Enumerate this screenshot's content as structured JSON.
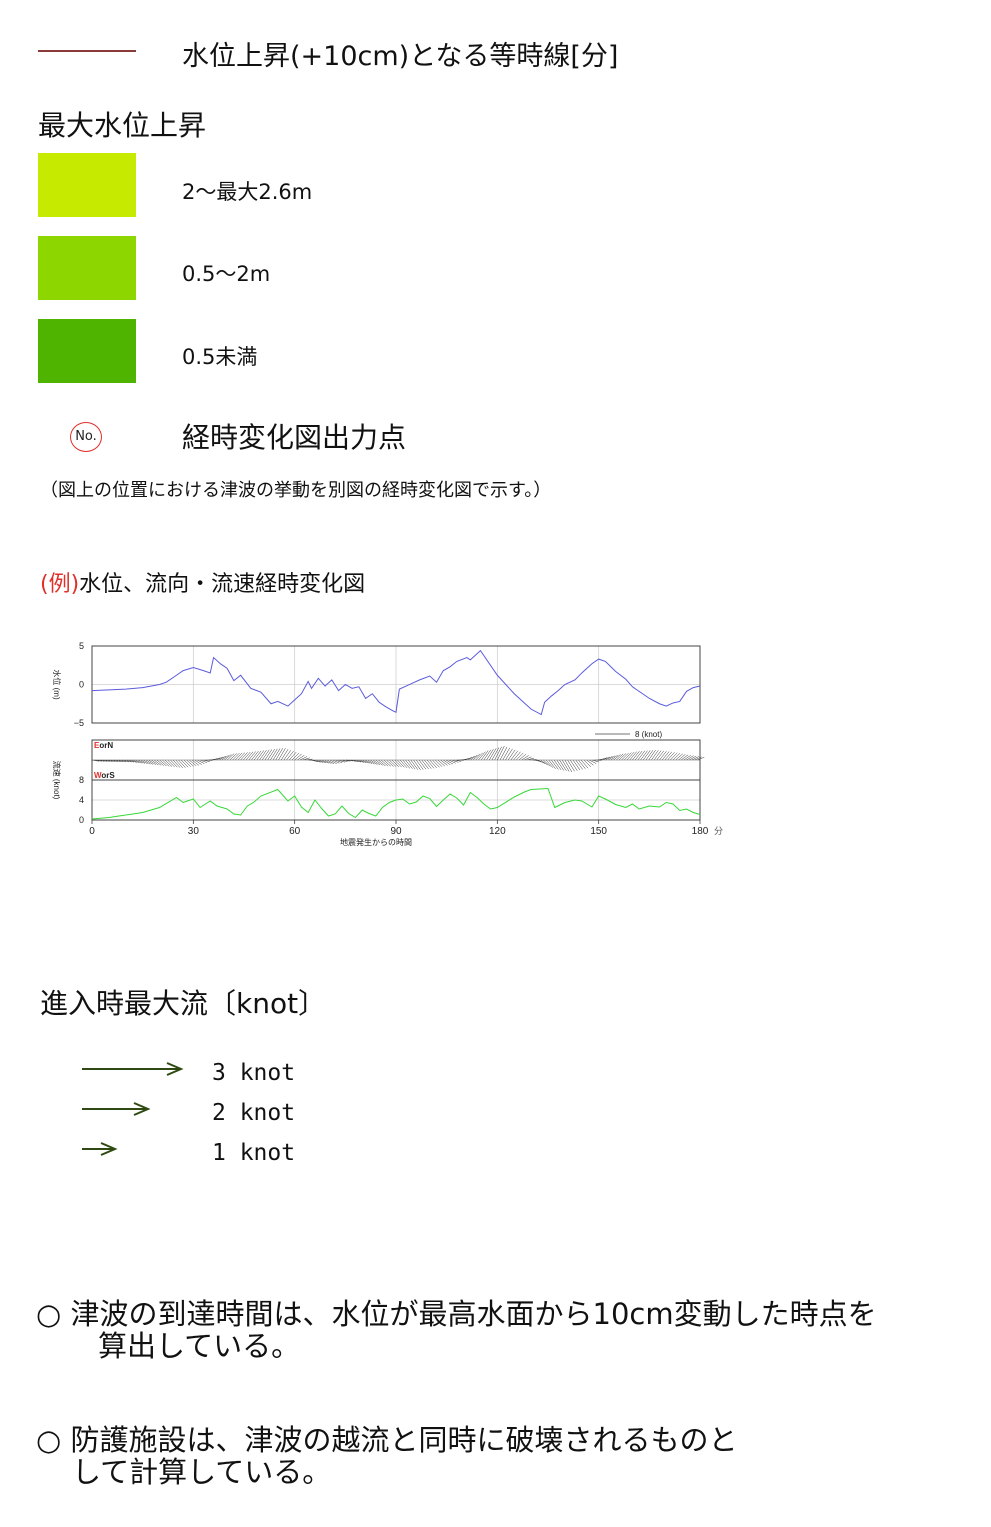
{
  "legend": {
    "isoline": {
      "label": "水位上昇(+10cm)となる等時線[分]",
      "color": "#8b3a3a"
    },
    "max_rise": {
      "title": "最大水位上昇",
      "items": [
        {
          "label": "2〜最大2.6m",
          "color": "#c6ea00"
        },
        {
          "label": "0.5〜2m",
          "color": "#8ed600"
        },
        {
          "label": "0.5未満",
          "color": "#4fb400"
        }
      ]
    },
    "output_point": {
      "icon": "no-circle-icon",
      "icon_text": "No.",
      "title": "経時変化図出力点",
      "note": "（図上の位置における津波の挙動を別図の経時変化図で示す。）"
    }
  },
  "example": {
    "prefix": "(例)",
    "title": "水位、流向・流速経時変化図"
  },
  "chart_data": {
    "type": "line",
    "xlabel": "地震発生からの時間",
    "x_unit": "分",
    "x_ticks": [
      0,
      30,
      60,
      90,
      120,
      150,
      180
    ],
    "xlim": [
      0,
      180
    ],
    "panels": [
      {
        "name": "water_level",
        "ylabel": "水位 (m)",
        "ylim": [
          -5,
          5
        ],
        "y_ticks": [
          -5,
          0,
          5
        ],
        "color": "#5b5bdc",
        "x": [
          0,
          5,
          10,
          15,
          20,
          22,
          25,
          27,
          30,
          33,
          35,
          36,
          38,
          40,
          42,
          44,
          47,
          50,
          53,
          55,
          58,
          60,
          62,
          64,
          65,
          67,
          69,
          71,
          73,
          75,
          77,
          79,
          81,
          83,
          85,
          87,
          89,
          90,
          91,
          93,
          95,
          97,
          100,
          102,
          104,
          106,
          108,
          111,
          112,
          115,
          120,
          125,
          130,
          133,
          134,
          136,
          138,
          140,
          143,
          145,
          148,
          150,
          152,
          155,
          158,
          160,
          165,
          168,
          170,
          172,
          174,
          176,
          178,
          180
        ],
        "y": [
          -0.8,
          -0.7,
          -0.6,
          -0.4,
          0,
          0.3,
          1.2,
          1.8,
          2.2,
          1.8,
          1.5,
          3.5,
          2.7,
          2.1,
          0.5,
          1.2,
          -0.5,
          -1,
          -2.5,
          -2.2,
          -2.8,
          -2,
          -1.2,
          0.4,
          -0.5,
          0.8,
          -0.2,
          0.6,
          -0.8,
          0,
          -0.5,
          -0.3,
          -1.8,
          -1.2,
          -2.3,
          -2.9,
          -3.4,
          -3.6,
          -0.6,
          -0.2,
          0.2,
          0.6,
          1.1,
          0.3,
          1.8,
          2.3,
          3,
          3.5,
          3.2,
          4.4,
          1.2,
          -1.2,
          -3.2,
          -3.9,
          -2.3,
          -1.5,
          -0.8,
          0,
          0.6,
          1.5,
          2.7,
          3.3,
          3,
          1.7,
          0.7,
          -0.3,
          -1.8,
          -2.5,
          -2.8,
          -2.4,
          -2.2,
          -0.9,
          -0.4,
          -0.2
        ]
      },
      {
        "name": "flow_direction",
        "ylabel": "流速 (knot)",
        "upper_label": "EorN",
        "lower_label": "WorS",
        "scale_label": "8 (knot)",
        "color": "#333333",
        "x": [
          0,
          10,
          20,
          25,
          30,
          35,
          40,
          45,
          50,
          55,
          60,
          65,
          70,
          75,
          80,
          85,
          90,
          95,
          100,
          105,
          110,
          115,
          120,
          125,
          130,
          135,
          140,
          145,
          150,
          155,
          160,
          165,
          170,
          175,
          180
        ],
        "y": [
          -0.3,
          -0.5,
          -1.5,
          -2,
          -1.3,
          0.3,
          1.6,
          2,
          2.5,
          3,
          1.5,
          -0.5,
          -1,
          -0.2,
          -0.8,
          -1.5,
          -1.8,
          -2.5,
          -2,
          -1,
          0.5,
          2.3,
          3.5,
          2,
          0,
          -2.2,
          -3,
          -2,
          0.5,
          1.5,
          2.2,
          2.5,
          2,
          1.2,
          0.6
        ]
      },
      {
        "name": "flow_speed",
        "ylim": [
          0,
          8
        ],
        "y_ticks": [
          0,
          4,
          8
        ],
        "color": "#38d838",
        "x": [
          0,
          5,
          10,
          15,
          20,
          25,
          27,
          30,
          32,
          35,
          37,
          40,
          42,
          44,
          46,
          48,
          50,
          55,
          58,
          60,
          62,
          64,
          66,
          68,
          70,
          72,
          74,
          76,
          78,
          80,
          82,
          84,
          86,
          88,
          90,
          92,
          94,
          96,
          98,
          100,
          102,
          104,
          106,
          108,
          110,
          112,
          114,
          116,
          118,
          120,
          125,
          128,
          130,
          135,
          137,
          140,
          143,
          145,
          148,
          150,
          152,
          155,
          158,
          160,
          162,
          165,
          168,
          170,
          172,
          174,
          176,
          178,
          180
        ],
        "y": [
          0.2,
          0.5,
          1,
          1.5,
          2.5,
          4.5,
          3.5,
          4.2,
          2.5,
          3.8,
          2.8,
          2.2,
          1.2,
          1,
          2.8,
          3.6,
          4.8,
          6.1,
          3.8,
          4.8,
          2.6,
          1.5,
          4,
          2.3,
          0.8,
          1.2,
          2.8,
          1.3,
          0.5,
          2,
          1.3,
          0.8,
          2.5,
          3.5,
          4,
          4.2,
          3.2,
          3.6,
          4.8,
          4.3,
          2.7,
          4,
          5.2,
          4.4,
          3,
          5.5,
          4.5,
          3.2,
          2.2,
          2.5,
          4.6,
          5.6,
          6.1,
          6.3,
          2.5,
          3.5,
          4,
          3.8,
          2.6,
          4.8,
          4.2,
          3.1,
          2.5,
          3.2,
          2.2,
          2.8,
          2.6,
          3.5,
          3.2,
          1.9,
          2.2,
          1.5,
          1.1
        ]
      }
    ]
  },
  "current_legend": {
    "title": "進入時最大流〔knot〕",
    "color": "#2e4a12",
    "items": [
      {
        "label": "3 knot",
        "knots": 3
      },
      {
        "label": "2 knot",
        "knots": 2
      },
      {
        "label": "1 knot",
        "knots": 1
      }
    ]
  },
  "notes": [
    {
      "marker": "○",
      "line1": "津波の到達時間は、水位が最高水面から10cm変動した時点を",
      "line2": "算出している。"
    },
    {
      "marker": "○",
      "line1": "防護施設は、津波の越流と同時に破壊されるものと",
      "line2": "して計算している。"
    }
  ]
}
